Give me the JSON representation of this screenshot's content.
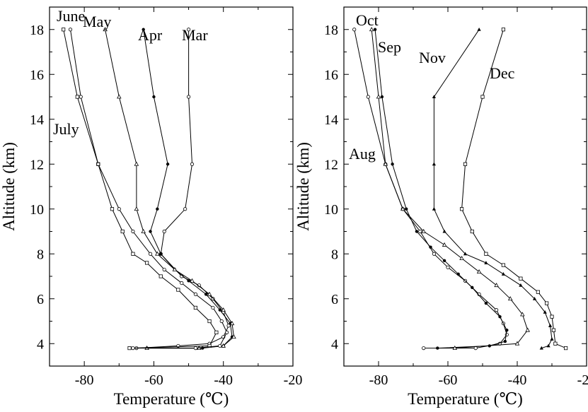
{
  "chart_data": [
    {
      "type": "line",
      "xlabel": "Temperature (℃)",
      "ylabel": "Altitude (km)",
      "xlim": [
        -90,
        -20
      ],
      "ylim": [
        3,
        19
      ],
      "xticks": [
        -80,
        -60,
        -40,
        -20
      ],
      "yticks": [
        4,
        6,
        8,
        10,
        12,
        14,
        16,
        18
      ],
      "xtick_labels": [
        "-80",
        "-60",
        "-40",
        "-20"
      ],
      "ytick_labels": [
        "4",
        "6",
        "8",
        "10",
        "12",
        "14",
        "16",
        "18"
      ],
      "grid": false,
      "series": [
        {
          "name": "Mar",
          "marker": "open-circle",
          "points": [
            [
              -65,
              3.8
            ],
            [
              -53,
              3.9
            ],
            [
              -44,
              4.0
            ],
            [
              -40,
              4.3
            ],
            [
              -38.5,
              4.8
            ],
            [
              -40,
              5.4
            ],
            [
              -43,
              6.0
            ],
            [
              -47,
              6.6
            ],
            [
              -52,
              7.0
            ],
            [
              -58,
              8.0
            ],
            [
              -57,
              9.0
            ],
            [
              -51,
              10.0
            ],
            [
              -49,
              12.0
            ],
            [
              -50,
              15.0
            ],
            [
              -50,
              18.0
            ]
          ]
        },
        {
          "name": "Apr",
          "marker": "filled-dot",
          "points": [
            [
              -62,
              3.8
            ],
            [
              -46,
              3.8
            ],
            [
              -40,
              3.9
            ],
            [
              -37.5,
              4.3
            ],
            [
              -38,
              4.9
            ],
            [
              -41,
              5.5
            ],
            [
              -45,
              6.2
            ],
            [
              -50,
              6.8
            ],
            [
              -54,
              7.3
            ],
            [
              -58,
              8.0
            ],
            [
              -61,
              9.0
            ],
            [
              -59,
              10.0
            ],
            [
              -56,
              12.0
            ],
            [
              -60,
              15.0
            ],
            [
              -63,
              18.0
            ]
          ]
        },
        {
          "name": "May",
          "marker": "open-triangle",
          "points": [
            [
              -62,
              3.8
            ],
            [
              -47,
              3.8
            ],
            [
              -40,
              3.9
            ],
            [
              -37,
              4.3
            ],
            [
              -37.5,
              4.9
            ],
            [
              -40,
              5.5
            ],
            [
              -44,
              6.2
            ],
            [
              -49,
              6.8
            ],
            [
              -54,
              7.3
            ],
            [
              -59,
              8.0
            ],
            [
              -63,
              9.0
            ],
            [
              -65,
              10.0
            ],
            [
              -65,
              12.0
            ],
            [
              -70,
              15.0
            ],
            [
              -74,
              18.0
            ]
          ]
        },
        {
          "name": "June",
          "marker": "open-square",
          "points": [
            [
              -67,
              3.8
            ],
            [
              -44,
              3.9
            ],
            [
              -42,
              4.5
            ],
            [
              -44,
              5.0
            ],
            [
              -48,
              5.6
            ],
            [
              -53,
              6.4
            ],
            [
              -58,
              7.0
            ],
            [
              -62,
              7.6
            ],
            [
              -66,
              8.0
            ],
            [
              -69,
              9.0
            ],
            [
              -72,
              10.0
            ],
            [
              -76,
              12.0
            ],
            [
              -82,
              15.0
            ],
            [
              -86,
              18.0
            ]
          ]
        },
        {
          "name": "July",
          "marker": "open-circle",
          "points": [
            [
              -66,
              3.8
            ],
            [
              -48,
              3.8
            ],
            [
              -41,
              3.9
            ],
            [
              -39,
              4.5
            ],
            [
              -40.5,
              5.0
            ],
            [
              -43,
              5.6
            ],
            [
              -48,
              6.2
            ],
            [
              -52,
              6.7
            ],
            [
              -57,
              7.3
            ],
            [
              -61,
              8.0
            ],
            [
              -66,
              9.0
            ],
            [
              -70,
              10.0
            ],
            [
              -76,
              12.0
            ],
            [
              -81,
              15.0
            ],
            [
              -84,
              18.0
            ]
          ]
        },
        {
          "name": "Aug",
          "marker": "open-circle",
          "points": [
            [
              -67,
              3.8
            ],
            [
              -52,
              3.8
            ],
            [
              -45,
              4.0
            ],
            [
              -43,
              4.4
            ],
            [
              -44,
              4.9
            ],
            [
              -46,
              5.5
            ],
            [
              -51,
              6.2
            ],
            [
              -55,
              6.8
            ],
            [
              -60,
              7.4
            ],
            [
              -64,
              8.0
            ],
            [
              -68,
              9.0
            ],
            [
              -73,
              10.0
            ],
            [
              -78,
              12.0
            ],
            [
              -83,
              15.0
            ],
            [
              -87,
              18.0
            ]
          ]
        },
        {
          "name": "Sep",
          "marker": "filled-dot",
          "points": [
            [
              -63,
              3.8
            ],
            [
              -48,
              3.9
            ],
            [
              -43.5,
              4.1
            ],
            [
              -43,
              4.6
            ],
            [
              -45,
              5.2
            ],
            [
              -49,
              5.8
            ],
            [
              -53,
              6.5
            ],
            [
              -57,
              7.1
            ],
            [
              -61,
              7.7
            ],
            [
              -65,
              8.3
            ],
            [
              -69,
              9.0
            ],
            [
              -72,
              10.0
            ],
            [
              -76,
              12.0
            ],
            [
              -79,
              15.0
            ],
            [
              -81,
              18.0
            ]
          ]
        },
        {
          "name": "Oct",
          "marker": "open-triangle",
          "points": [
            [
              -58,
              3.8
            ],
            [
              -40,
              4.0
            ],
            [
              -37,
              4.6
            ],
            [
              -38.5,
              5.3
            ],
            [
              -42,
              6.0
            ],
            [
              -46,
              6.6
            ],
            [
              -51,
              7.2
            ],
            [
              -56,
              7.8
            ],
            [
              -61,
              8.4
            ],
            [
              -67,
              9.0
            ],
            [
              -73,
              10.0
            ],
            [
              -78,
              12.0
            ],
            [
              -80,
              15.0
            ],
            [
              -82,
              18.0
            ]
          ]
        },
        {
          "name": "Nov",
          "marker": "filled-triangle",
          "points": [
            [
              -33,
              3.8
            ],
            [
              -31,
              3.9
            ],
            [
              -30,
              4.2
            ],
            [
              -30.5,
              4.8
            ],
            [
              -32,
              5.4
            ],
            [
              -35,
              6.0
            ],
            [
              -39,
              6.6
            ],
            [
              -44,
              7.1
            ],
            [
              -49,
              7.6
            ],
            [
              -55,
              8.0
            ],
            [
              -61,
              9.0
            ],
            [
              -64,
              10.0
            ],
            [
              -64,
              12.0
            ],
            [
              -64,
              15.0
            ],
            [
              -51,
              18.0
            ]
          ]
        },
        {
          "name": "Dec",
          "marker": "open-square",
          "points": [
            [
              -26,
              3.8
            ],
            [
              -29,
              4.0
            ],
            [
              -29.5,
              4.6
            ],
            [
              -30,
              5.2
            ],
            [
              -31.5,
              5.8
            ],
            [
              -34,
              6.3
            ],
            [
              -39,
              6.9
            ],
            [
              -44,
              7.5
            ],
            [
              -49,
              8.0
            ],
            [
              -53,
              9.0
            ],
            [
              -56,
              10.0
            ],
            [
              -55,
              12.0
            ],
            [
              -50,
              15.0
            ],
            [
              -44,
              18.0
            ]
          ]
        }
      ],
      "panels": [
        {
          "series": [
            "Mar",
            "Apr",
            "May",
            "June",
            "July"
          ]
        },
        {
          "series": [
            "Aug",
            "Sep",
            "Oct",
            "Nov",
            "Dec"
          ]
        }
      ]
    }
  ]
}
